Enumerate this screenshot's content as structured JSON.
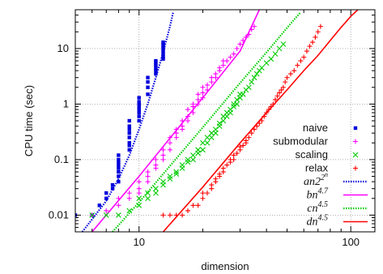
{
  "chart_data": {
    "type": "scatter",
    "title": "",
    "xlabel": "dimension",
    "ylabel": "CPU time (sec)",
    "xscale": "log",
    "yscale": "log",
    "xlim": [
      5,
      130
    ],
    "ylim": [
      0.005,
      50
    ],
    "xticks": [
      {
        "v": 10,
        "label": "10"
      },
      {
        "v": 100,
        "label": "100"
      }
    ],
    "yticks": [
      {
        "v": 0.01,
        "label": "0.01"
      },
      {
        "v": 0.1,
        "label": "0.1"
      },
      {
        "v": 1,
        "label": "1"
      },
      {
        "v": 10,
        "label": "10"
      }
    ],
    "grid": true,
    "legend_position": "bottom-right",
    "series": [
      {
        "name": "naive",
        "kind": "points",
        "marker": "square",
        "color": "#0000dd",
        "points": [
          [
            5,
            0.01
          ],
          [
            6,
            0.01
          ],
          [
            6.5,
            0.015
          ],
          [
            7,
            0.02
          ],
          [
            7,
            0.025
          ],
          [
            7.5,
            0.03
          ],
          [
            7.5,
            0.035
          ],
          [
            8,
            0.04
          ],
          [
            8,
            0.05
          ],
          [
            8,
            0.06
          ],
          [
            8,
            0.07
          ],
          [
            8,
            0.08
          ],
          [
            8,
            0.09
          ],
          [
            8,
            0.1
          ],
          [
            8,
            0.12
          ],
          [
            9,
            0.15
          ],
          [
            9,
            0.18
          ],
          [
            9,
            0.2
          ],
          [
            9,
            0.25
          ],
          [
            9,
            0.3
          ],
          [
            9,
            0.35
          ],
          [
            9,
            0.4
          ],
          [
            9,
            0.5
          ],
          [
            10,
            0.5
          ],
          [
            10,
            0.6
          ],
          [
            10,
            0.7
          ],
          [
            10,
            0.8
          ],
          [
            10,
            0.9
          ],
          [
            10,
            1.0
          ],
          [
            10,
            1.1
          ],
          [
            10,
            1.3
          ],
          [
            11,
            1.5
          ],
          [
            11,
            2.0
          ],
          [
            11,
            2.5
          ],
          [
            11,
            3.0
          ],
          [
            12,
            3.5
          ],
          [
            12,
            4.0
          ],
          [
            12,
            4.5
          ],
          [
            12,
            5.0
          ],
          [
            12,
            5.5
          ],
          [
            12,
            6.0
          ],
          [
            13,
            6.5
          ],
          [
            13,
            7.0
          ],
          [
            13,
            8.0
          ],
          [
            13,
            9.0
          ],
          [
            13,
            10
          ],
          [
            13,
            11
          ],
          [
            13,
            12
          ],
          [
            13,
            13
          ]
        ]
      },
      {
        "name": "submodular",
        "kind": "points",
        "marker": "plus",
        "color": "#ff00ff",
        "points": [
          [
            6,
            0.01
          ],
          [
            7,
            0.012
          ],
          [
            8,
            0.015
          ],
          [
            8,
            0.02
          ],
          [
            9,
            0.02
          ],
          [
            9,
            0.025
          ],
          [
            10,
            0.025
          ],
          [
            10,
            0.03
          ],
          [
            10,
            0.04
          ],
          [
            11,
            0.04
          ],
          [
            11,
            0.05
          ],
          [
            11,
            0.06
          ],
          [
            12,
            0.07
          ],
          [
            12,
            0.08
          ],
          [
            12,
            0.1
          ],
          [
            13,
            0.1
          ],
          [
            13,
            0.12
          ],
          [
            13,
            0.15
          ],
          [
            14,
            0.15
          ],
          [
            14,
            0.2
          ],
          [
            14,
            0.25
          ],
          [
            15,
            0.25
          ],
          [
            15,
            0.3
          ],
          [
            15,
            0.35
          ],
          [
            16,
            0.35
          ],
          [
            16,
            0.4
          ],
          [
            16,
            0.5
          ],
          [
            17,
            0.5
          ],
          [
            17,
            0.6
          ],
          [
            17,
            0.8
          ],
          [
            18,
            0.7
          ],
          [
            18,
            0.9
          ],
          [
            18,
            1.0
          ],
          [
            19,
            1.0
          ],
          [
            19,
            1.2
          ],
          [
            19,
            1.5
          ],
          [
            20,
            1.3
          ],
          [
            20,
            1.6
          ],
          [
            20,
            2.0
          ],
          [
            21,
            1.8
          ],
          [
            21,
            2.2
          ],
          [
            22,
            2.5
          ],
          [
            22,
            3.0
          ],
          [
            23,
            3.0
          ],
          [
            23,
            3.5
          ],
          [
            24,
            4.0
          ],
          [
            24,
            4.5
          ],
          [
            25,
            5.0
          ],
          [
            25,
            6.0
          ],
          [
            26,
            6.0
          ],
          [
            27,
            7.0
          ],
          [
            28,
            8.0
          ],
          [
            29,
            10
          ],
          [
            30,
            12
          ],
          [
            31,
            14
          ],
          [
            32,
            16
          ],
          [
            33,
            18
          ],
          [
            34,
            22
          ],
          [
            35,
            25
          ]
        ]
      },
      {
        "name": "scaling",
        "kind": "points",
        "marker": "cross",
        "color": "#00cc00",
        "points": [
          [
            6,
            0.01
          ],
          [
            7,
            0.01
          ],
          [
            8,
            0.01
          ],
          [
            9,
            0.012
          ],
          [
            10,
            0.015
          ],
          [
            10,
            0.02
          ],
          [
            11,
            0.02
          ],
          [
            11,
            0.025
          ],
          [
            12,
            0.025
          ],
          [
            12,
            0.03
          ],
          [
            13,
            0.035
          ],
          [
            13,
            0.04
          ],
          [
            14,
            0.045
          ],
          [
            14,
            0.05
          ],
          [
            15,
            0.055
          ],
          [
            15,
            0.06
          ],
          [
            16,
            0.07
          ],
          [
            16,
            0.08
          ],
          [
            17,
            0.09
          ],
          [
            17,
            0.1
          ],
          [
            18,
            0.1
          ],
          [
            18,
            0.12
          ],
          [
            19,
            0.13
          ],
          [
            19,
            0.15
          ],
          [
            20,
            0.15
          ],
          [
            20,
            0.2
          ],
          [
            21,
            0.2
          ],
          [
            21,
            0.25
          ],
          [
            22,
            0.25
          ],
          [
            22,
            0.3
          ],
          [
            23,
            0.3
          ],
          [
            23,
            0.35
          ],
          [
            24,
            0.4
          ],
          [
            24,
            0.45
          ],
          [
            25,
            0.5
          ],
          [
            25,
            0.6
          ],
          [
            26,
            0.6
          ],
          [
            26,
            0.7
          ],
          [
            27,
            0.7
          ],
          [
            27,
            0.8
          ],
          [
            28,
            0.9
          ],
          [
            28,
            1.0
          ],
          [
            29,
            1.0
          ],
          [
            29,
            1.2
          ],
          [
            30,
            1.3
          ],
          [
            30,
            1.5
          ],
          [
            31,
            1.5
          ],
          [
            32,
            1.8
          ],
          [
            33,
            2.0
          ],
          [
            34,
            2.5
          ],
          [
            35,
            3.0
          ],
          [
            36,
            3.5
          ],
          [
            37,
            4.0
          ],
          [
            38,
            4.5
          ],
          [
            40,
            5.5
          ],
          [
            42,
            6.5
          ],
          [
            44,
            8.0
          ],
          [
            46,
            10
          ],
          [
            48,
            12
          ]
        ]
      },
      {
        "name": "relax",
        "kind": "points",
        "marker": "plus",
        "color": "#ff0000",
        "points": [
          [
            13,
            0.01
          ],
          [
            14,
            0.01
          ],
          [
            15,
            0.01
          ],
          [
            16,
            0.01
          ],
          [
            17,
            0.012
          ],
          [
            18,
            0.015
          ],
          [
            19,
            0.015
          ],
          [
            20,
            0.02
          ],
          [
            20,
            0.025
          ],
          [
            21,
            0.025
          ],
          [
            22,
            0.03
          ],
          [
            22,
            0.035
          ],
          [
            23,
            0.04
          ],
          [
            23,
            0.045
          ],
          [
            24,
            0.05
          ],
          [
            24,
            0.055
          ],
          [
            25,
            0.06
          ],
          [
            25,
            0.07
          ],
          [
            26,
            0.08
          ],
          [
            27,
            0.09
          ],
          [
            27,
            0.1
          ],
          [
            28,
            0.1
          ],
          [
            28,
            0.12
          ],
          [
            29,
            0.13
          ],
          [
            30,
            0.15
          ],
          [
            30,
            0.17
          ],
          [
            31,
            0.18
          ],
          [
            32,
            0.2
          ],
          [
            32,
            0.22
          ],
          [
            33,
            0.25
          ],
          [
            34,
            0.3
          ],
          [
            35,
            0.35
          ],
          [
            36,
            0.4
          ],
          [
            37,
            0.45
          ],
          [
            38,
            0.5
          ],
          [
            39,
            0.6
          ],
          [
            40,
            0.7
          ],
          [
            41,
            0.8
          ],
          [
            42,
            0.9
          ],
          [
            43,
            1.0
          ],
          [
            44,
            1.2
          ],
          [
            45,
            1.4
          ],
          [
            46,
            1.6
          ],
          [
            47,
            1.8
          ],
          [
            48,
            2.0
          ],
          [
            49,
            2.5
          ],
          [
            50,
            3.0
          ],
          [
            52,
            3.5
          ],
          [
            54,
            4.0
          ],
          [
            56,
            5.0
          ],
          [
            58,
            6.0
          ],
          [
            60,
            7.0
          ],
          [
            62,
            9.0
          ],
          [
            64,
            11
          ],
          [
            66,
            13
          ],
          [
            68,
            16
          ],
          [
            70,
            20
          ],
          [
            72,
            25
          ]
        ]
      },
      {
        "name_math": [
          "an2",
          "2",
          "n"
        ],
        "kind": "fit",
        "style": "dotted",
        "color": "#0000dd",
        "points": [
          [
            5.4,
            0.005
          ],
          [
            7,
            0.018
          ],
          [
            8,
            0.045
          ],
          [
            9,
            0.12
          ],
          [
            10,
            0.35
          ],
          [
            11,
            1.0
          ],
          [
            12,
            3.0
          ],
          [
            13,
            8.5
          ],
          [
            14,
            25
          ],
          [
            14.5,
            45
          ]
        ]
      },
      {
        "name_math": [
          "bn",
          "4.7",
          ""
        ],
        "kind": "fit",
        "style": "solid",
        "color": "#ff00ff",
        "points": [
          [
            6,
            0.005
          ],
          [
            10,
            0.05
          ],
          [
            20,
            1.3
          ],
          [
            30,
            9.0
          ],
          [
            37,
            50
          ]
        ]
      },
      {
        "name_math": [
          "cn",
          "4.5",
          ""
        ],
        "kind": "fit",
        "style": "dotted",
        "color": "#00cc00",
        "points": [
          [
            7.5,
            0.005
          ],
          [
            10,
            0.017
          ],
          [
            20,
            0.38
          ],
          [
            30,
            2.4
          ],
          [
            40,
            8.5
          ],
          [
            52,
            28
          ],
          [
            58,
            45
          ]
        ]
      },
      {
        "name_math": [
          "dn",
          "4.5",
          ""
        ],
        "kind": "fit",
        "style": "solid",
        "color": "#ff0000",
        "points": [
          [
            13,
            0.005
          ],
          [
            20,
            0.032
          ],
          [
            30,
            0.2
          ],
          [
            40,
            0.7
          ],
          [
            50,
            1.8
          ],
          [
            60,
            4.0
          ],
          [
            70,
            7.5
          ],
          [
            80,
            14
          ],
          [
            90,
            24
          ],
          [
            100,
            38
          ],
          [
            108,
            50
          ]
        ]
      }
    ]
  }
}
